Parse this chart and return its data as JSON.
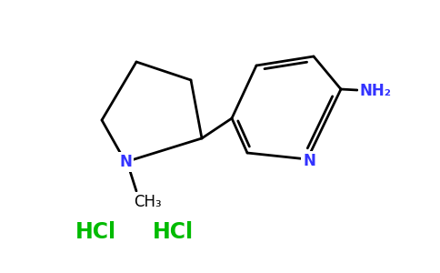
{
  "bg_color": "#ffffff",
  "bond_color": "#000000",
  "N_color": "#3333ff",
  "NH2_color": "#3333ff",
  "HCl_color": "#00bb00",
  "line_width": 2.0,
  "figsize": [
    4.84,
    3.0
  ],
  "dpi": 100,
  "CH3_label": "CH₃",
  "NH2_label": "NH₂",
  "N_label": "N",
  "HCl1_label": "HCl",
  "HCl2_label": "HCl",
  "HCl_fontsize": 17,
  "N_fontsize": 12,
  "NH2_fontsize": 12,
  "CH3_fontsize": 12,
  "label_fontsize": 12
}
